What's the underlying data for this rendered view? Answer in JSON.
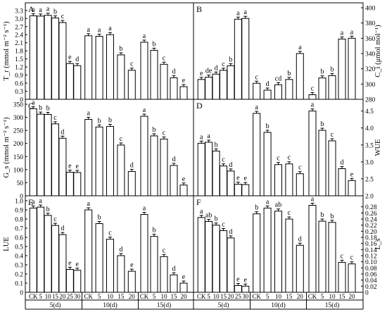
{
  "chart_data": [
    {
      "panel": "A",
      "type": "bar",
      "ylabel": "T_r (mmol m⁻² s⁻¹)",
      "ylim": [
        0,
        3.4
      ],
      "yticks": [
        "0",
        "0.3",
        "0.6",
        "0.9",
        "1.2",
        "1.5",
        "1.8",
        "2.1",
        "2.4",
        "2.7",
        "3.0",
        "3.3"
      ],
      "groups": [
        {
          "categories": [
            "CK",
            "5",
            "10",
            "15",
            "20",
            "25",
            "30"
          ],
          "values": [
            3.1,
            3.09,
            3.12,
            3.02,
            2.85,
            1.33,
            1.25
          ],
          "letters": [
            "a",
            "a",
            "a",
            "b",
            "c",
            "e",
            "d"
          ]
        },
        {
          "categories": [
            "CK",
            "5",
            "10",
            "15",
            "20"
          ],
          "values": [
            2.36,
            2.34,
            2.4,
            1.65,
            1.08
          ],
          "letters": [
            "a",
            "a",
            "a",
            "b",
            "c"
          ]
        },
        {
          "categories": [
            "CK",
            "5",
            "10",
            "15",
            "20"
          ],
          "values": [
            2.12,
            1.82,
            1.3,
            0.8,
            0.47
          ],
          "letters": [
            "a",
            "b",
            "c",
            "d",
            "e"
          ]
        }
      ]
    },
    {
      "panel": "B",
      "type": "bar",
      "ylabel": "C_i (μmol mol⁻¹)",
      "ylim": [
        280,
        400
      ],
      "yticks": [
        "280",
        "300",
        "320",
        "340",
        "360",
        "380",
        "400"
      ],
      "groups": [
        {
          "categories": [
            "CK",
            "5",
            "10",
            "15",
            "20",
            "25",
            "30"
          ],
          "values": [
            306,
            309,
            313,
            318,
            324,
            385,
            386
          ],
          "letters": [
            "e",
            "de",
            "d",
            "c",
            "b",
            "a",
            "a"
          ]
        },
        {
          "categories": [
            "CK",
            "5",
            "10",
            "15",
            "20"
          ],
          "values": [
            301,
            292,
            299,
            306,
            340
          ],
          "letters": [
            "c",
            "d",
            "cd",
            "b",
            "a"
          ]
        },
        {
          "categories": [
            "CK",
            "5",
            "10",
            "15",
            "20"
          ],
          "values": [
            286,
            308,
            311,
            359,
            360
          ],
          "letters": [
            "c",
            "b",
            "b",
            "a",
            "a"
          ]
        }
      ]
    },
    {
      "panel": "C",
      "type": "bar",
      "ylabel": "G_s (mmol m⁻² s⁻¹)",
      "ylim": [
        0,
        350
      ],
      "yticks": [
        "0",
        "50",
        "100",
        "150",
        "200",
        "250",
        "300",
        "350"
      ],
      "groups": [
        {
          "categories": [
            "CK",
            "5",
            "10",
            "15",
            "20",
            "25",
            "30"
          ],
          "values": [
            333,
            312,
            311,
            275,
            220,
            90,
            89
          ],
          "letters": [
            "a",
            "b",
            "b",
            "c",
            "d",
            "e",
            "e"
          ]
        },
        {
          "categories": [
            "CK",
            "5",
            "10",
            "15",
            "20"
          ],
          "values": [
            292,
            263,
            265,
            194,
            93
          ],
          "letters": [
            "a",
            "b",
            "b",
            "c",
            "d"
          ]
        },
        {
          "categories": [
            "CK",
            "5",
            "10",
            "15",
            "20"
          ],
          "values": [
            304,
            229,
            217,
            116,
            41
          ],
          "letters": [
            "a",
            "b",
            "c",
            "d",
            "e"
          ]
        }
      ]
    },
    {
      "panel": "D",
      "type": "bar",
      "ylabel": "WUE",
      "ylim": [
        2.0,
        4.7
      ],
      "yticks": [
        "2.0",
        "2.5",
        "3.0",
        "3.5",
        "4.0",
        "4.5"
      ],
      "groups": [
        {
          "categories": [
            "CK",
            "5",
            "10",
            "15",
            "20",
            "25",
            "30"
          ],
          "values": [
            3.55,
            3.58,
            3.32,
            2.88,
            2.73,
            2.34,
            2.33
          ],
          "letters": [
            "a",
            "a",
            "b",
            "c",
            "d",
            "e",
            "e"
          ]
        },
        {
          "categories": [
            "CK",
            "5",
            "10",
            "15",
            "20"
          ],
          "values": [
            4.43,
            3.87,
            2.92,
            2.94,
            2.65
          ],
          "letters": [
            "a",
            "b",
            "c",
            "c",
            "c"
          ]
        },
        {
          "categories": [
            "CK",
            "5",
            "10",
            "15",
            "20"
          ],
          "values": [
            4.5,
            3.93,
            3.62,
            2.8,
            2.45
          ],
          "letters": [
            "a",
            "b",
            "c",
            "d",
            "e"
          ]
        }
      ]
    },
    {
      "panel": "E",
      "type": "bar",
      "ylabel": "LUE",
      "ylim": [
        0,
        1.0
      ],
      "yticks": [
        "0",
        "0.1",
        "0.2",
        "0.3",
        "0.4",
        "0.5",
        "0.6",
        "0.7",
        "0.8",
        "0.9",
        "1.0"
      ],
      "groups": [
        {
          "categories": [
            "CK",
            "5",
            "10",
            "15",
            "20",
            "25",
            "30"
          ],
          "values": [
            0.92,
            0.93,
            0.84,
            0.73,
            0.63,
            0.25,
            0.24
          ],
          "letters": [
            "a",
            "a",
            "b",
            "c",
            "d",
            "e",
            "e"
          ]
        },
        {
          "categories": [
            "CK",
            "5",
            "10",
            "15",
            "20"
          ],
          "values": [
            0.9,
            0.75,
            0.58,
            0.4,
            0.23
          ],
          "letters": [
            "a",
            "b",
            "c",
            "d",
            "e"
          ]
        },
        {
          "categories": [
            "CK",
            "5",
            "10",
            "15",
            "20"
          ],
          "values": [
            0.85,
            0.61,
            0.39,
            0.19,
            0.1
          ],
          "letters": [
            "a",
            "b",
            "c",
            "d",
            "e"
          ]
        }
      ]
    },
    {
      "panel": "F",
      "type": "bar",
      "ylabel": "L_s",
      "ylim": [
        0,
        0.3
      ],
      "yticks": [
        "0",
        "0.02",
        "0.04",
        "0.06",
        "0.08",
        "0.10",
        "0.12",
        "0.14",
        "0.16",
        "0.18",
        "0.20",
        "0.22",
        "0.24",
        "0.26",
        "0.28"
      ],
      "groups": [
        {
          "categories": [
            "CK",
            "5",
            "10",
            "15",
            "20",
            "25",
            "30"
          ],
          "values": [
            0.245,
            0.232,
            0.22,
            0.202,
            0.178,
            0.022,
            0.02
          ],
          "letters": [
            "a",
            "ab",
            "b",
            "c",
            "d",
            "e",
            "e"
          ]
        },
        {
          "categories": [
            "CK",
            "5",
            "10",
            "15",
            "20"
          ],
          "values": [
            0.257,
            0.276,
            0.266,
            0.24,
            0.154
          ],
          "letters": [
            "b",
            "a",
            "ab",
            "c",
            "d"
          ]
        },
        {
          "categories": [
            "CK",
            "5",
            "10",
            "15",
            "20"
          ],
          "values": [
            0.285,
            0.233,
            0.229,
            0.098,
            0.093
          ],
          "letters": [
            "a",
            "b",
            "b",
            "c",
            "c"
          ]
        }
      ]
    }
  ],
  "x_group_labels": [
    "5(d)",
    "10(d)",
    "15(d)"
  ]
}
